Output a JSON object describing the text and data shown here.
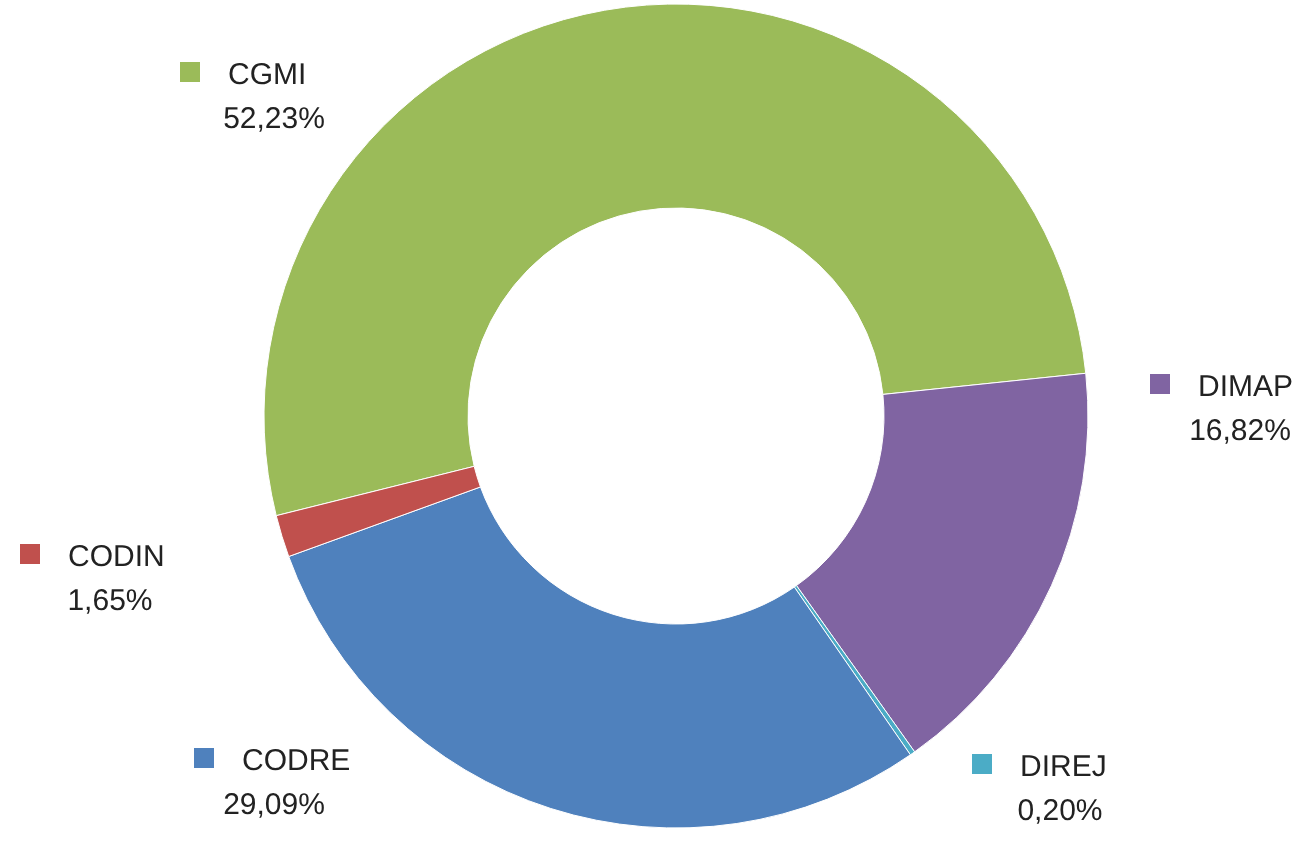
{
  "chart_data": {
    "type": "donut",
    "categories": [
      "CGMI",
      "DIMAP",
      "DIREJ",
      "CODRE",
      "CODIN"
    ],
    "values": [
      52.23,
      16.82,
      0.2,
      29.09,
      1.65
    ],
    "value_labels": [
      "52,23%",
      "16,82%",
      "0,20%",
      "29,09%",
      "1,65%"
    ],
    "colors": [
      "#9bbb59",
      "#8064a2",
      "#4bacc6",
      "#4f81bd",
      "#c0504d"
    ],
    "legend": "left"
  }
}
